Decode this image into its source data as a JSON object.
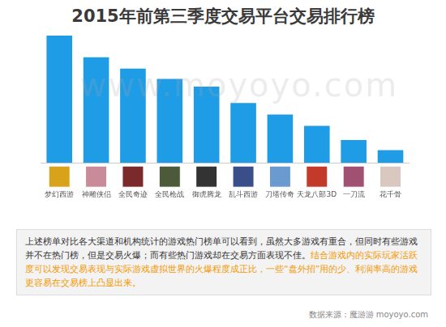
{
  "chart_data": {
    "type": "bar",
    "title": "2015年前第三季度交易平台交易排行榜",
    "categories": [
      "梦幻西游",
      "神雕侠侣",
      "全民奇迹",
      "全民枪战",
      "御虎腾龙",
      "乱斗西游",
      "刀塔传奇",
      "天龙八部3D",
      "一刀流",
      "花千骨"
    ],
    "values": [
      100,
      83,
      74,
      66,
      60,
      47,
      38,
      29,
      18,
      10
    ],
    "color": "#1f9ce6",
    "ylim": [
      0,
      100
    ],
    "grid": false,
    "tick_labels": "x"
  },
  "watermark": "www.moyoyo.com",
  "text_box": {
    "text": "上述榜单对比各大渠道和机构统计的游戏热门榜单可以看到，虽然大多游戏有重合，但同时有些游戏并不在热门榜，但是交易火爆；而有些热门游戏却在交易方面表现不佳。",
    "highlight": "结合游戏内的实际玩家活跃度可以发现交易表现与实际游戏虚拟世界的火爆程度成正比，一些“盘外招”用的少、利润率高的游戏更容易在交易榜上凸显出来。"
  },
  "source": "数据来源：魔游游 moyoyo.com"
}
